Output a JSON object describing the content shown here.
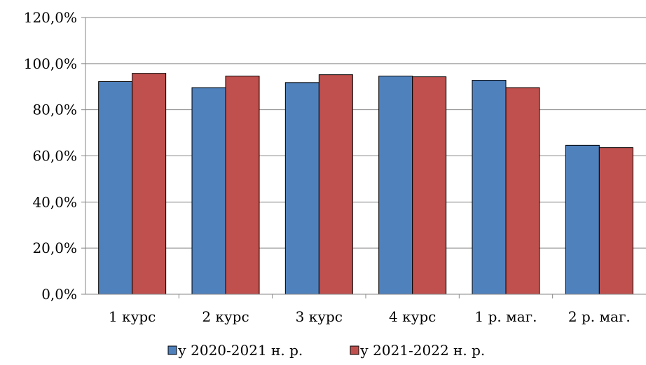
{
  "chart_data": {
    "type": "bar",
    "categories": [
      "1 курс",
      "2 курс",
      "3 курс",
      "4 курс",
      "1 р. маг.",
      "2 р. маг."
    ],
    "series": [
      {
        "name": "у 2020-2021 н. р.",
        "color": "#4F81BD",
        "values": [
          92.2,
          89.6,
          91.8,
          94.6,
          92.8,
          64.6
        ]
      },
      {
        "name": "у 2021-2022 н. р.",
        "color": "#C0504D",
        "values": [
          95.8,
          94.6,
          95.2,
          94.3,
          89.6,
          63.6
        ]
      }
    ],
    "title": "",
    "xlabel": "",
    "ylabel": "",
    "ylim": [
      0,
      120
    ],
    "yticks": [
      "0,0%",
      "20,0%",
      "40,0%",
      "60,0%",
      "80,0%",
      "100,0%",
      "120,0%"
    ],
    "grid": true,
    "legend_position": "bottom"
  }
}
